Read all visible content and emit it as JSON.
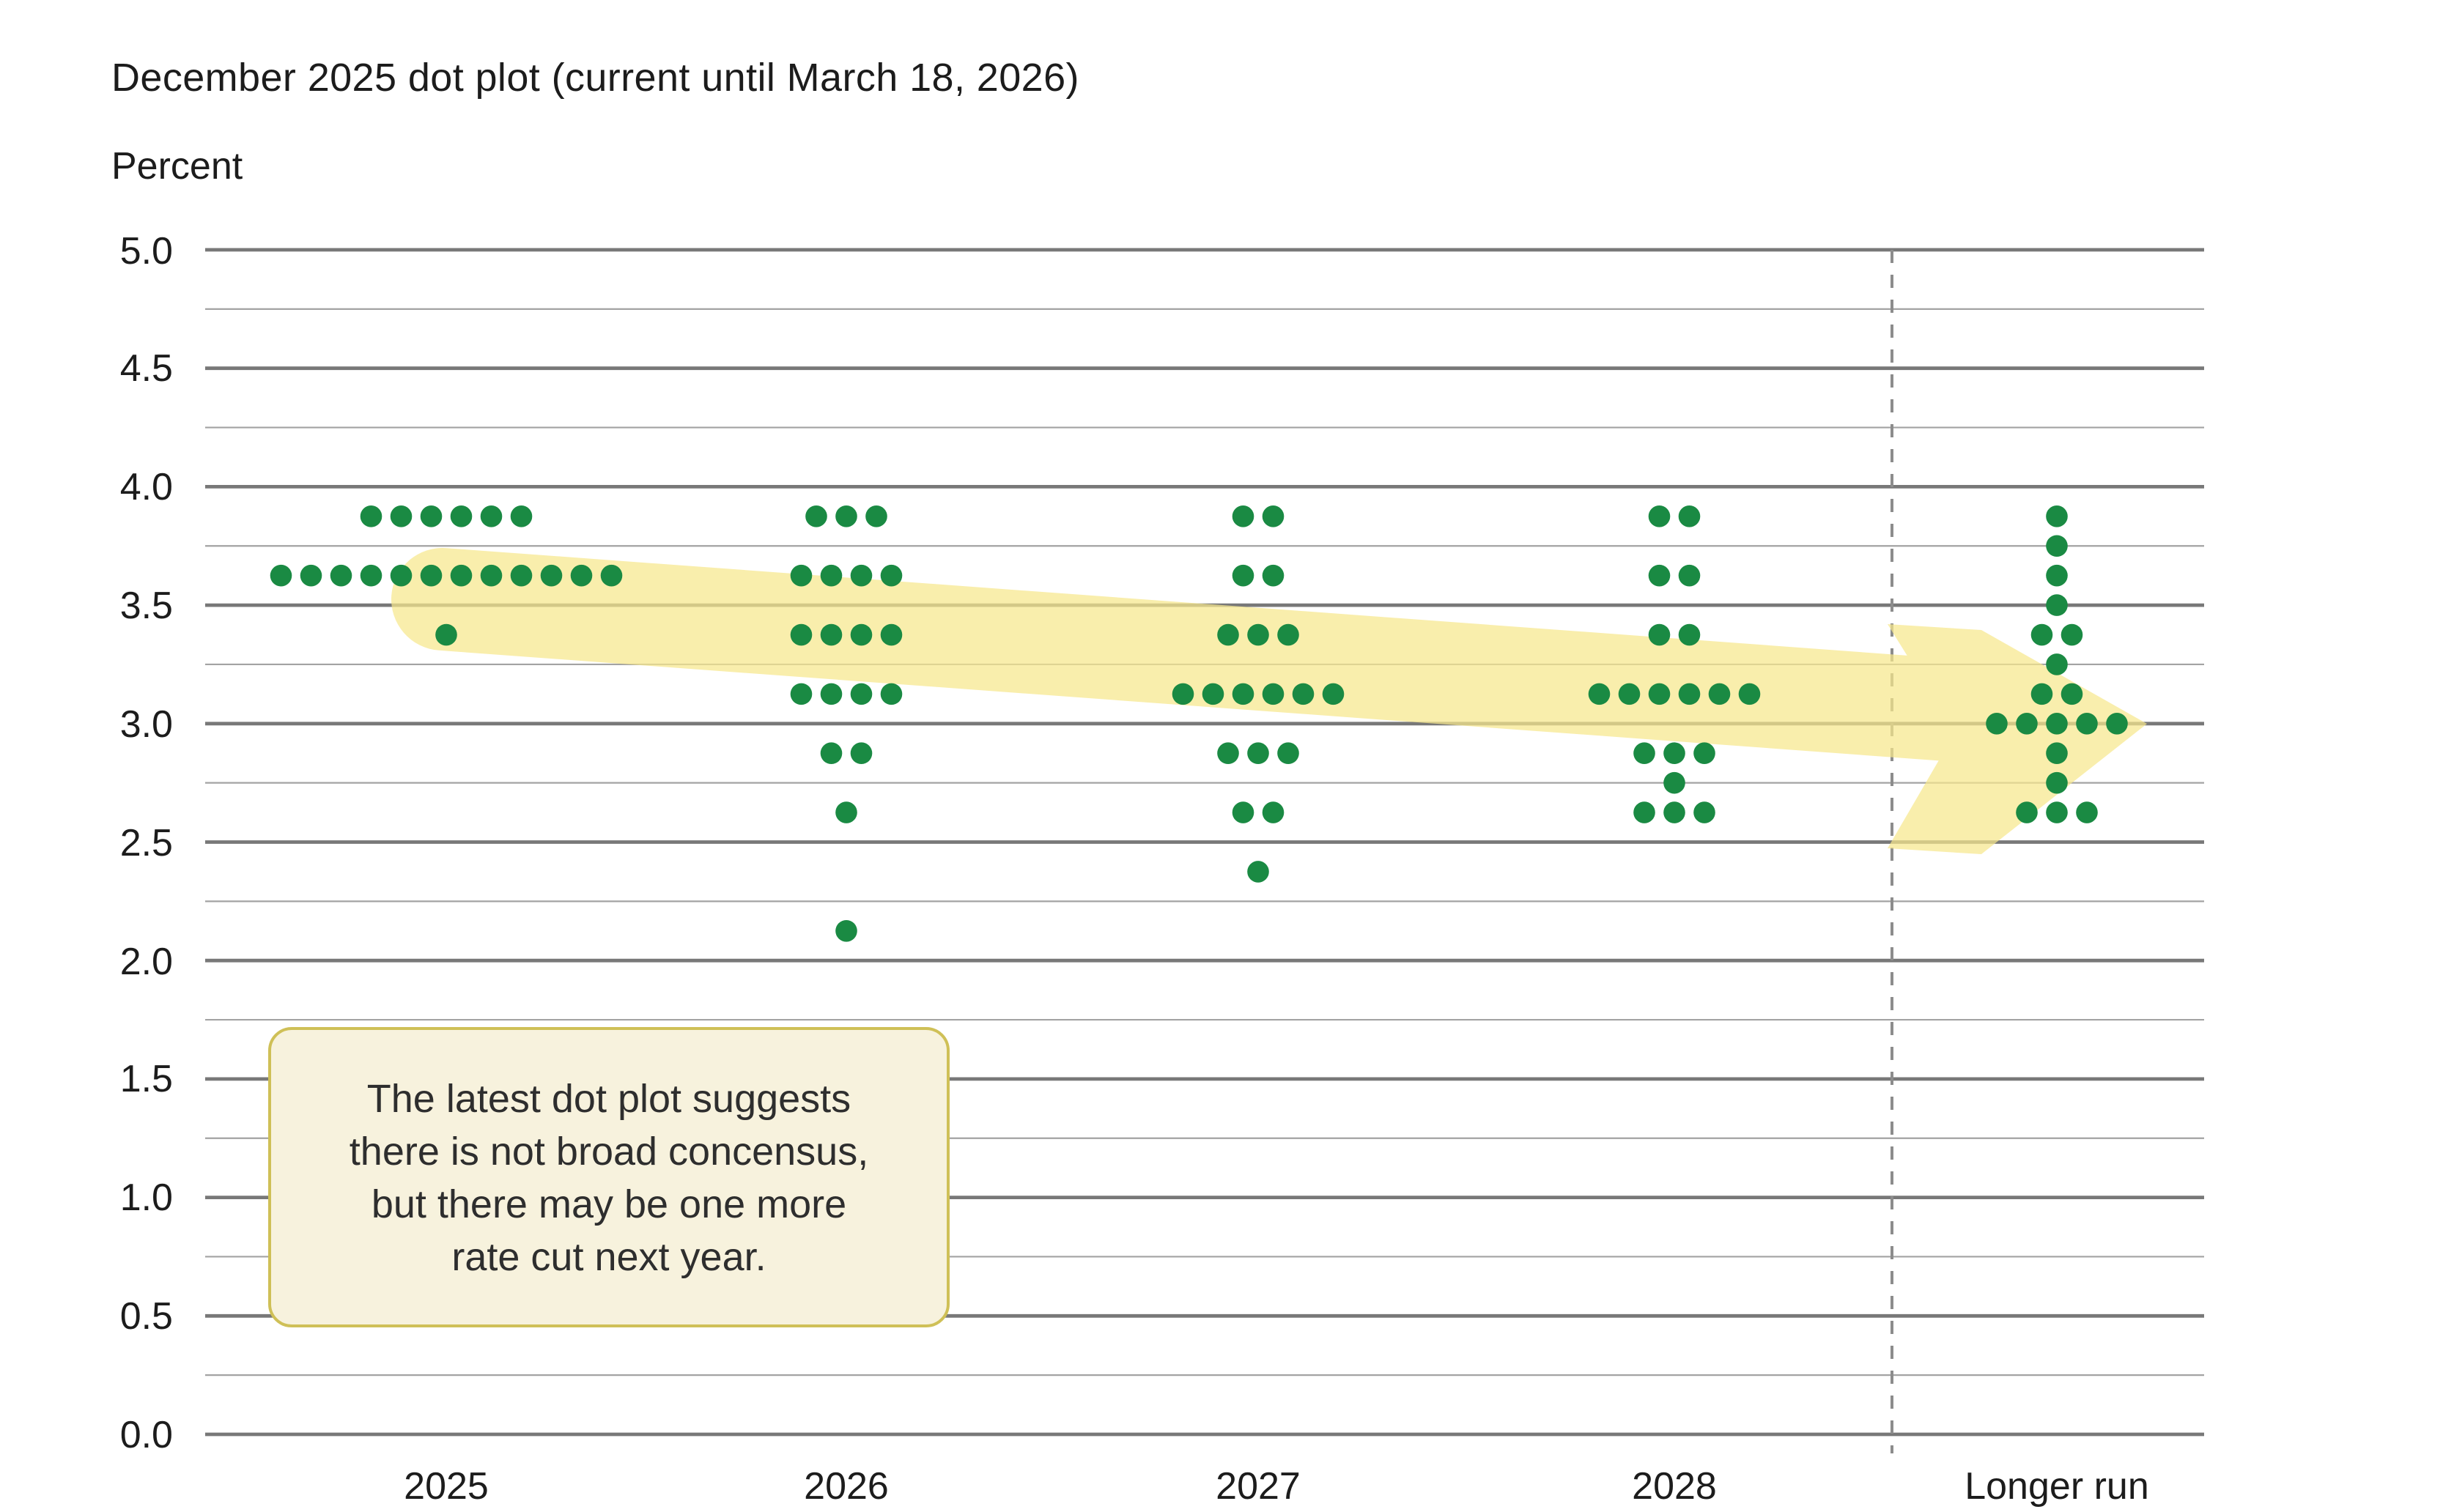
{
  "page": {
    "background_color": "#ffffff"
  },
  "header": {
    "title": "December 2025 dot plot (current until March 18, 2026)",
    "y_axis_title": "Percent"
  },
  "annotation_box": {
    "full_text": "The latest dot plot suggests there is not broad concensus, but there may be one more rate cut next year.",
    "lines": [
      "The latest dot plot suggests",
      "there is not broad concensus,",
      "but there may be one more",
      "rate cut next year."
    ],
    "fill_color": "#f7f2dd",
    "border_color": "#cfc057",
    "text_color": "#2e2e2e"
  },
  "chart_data": {
    "type": "scatter",
    "subtype": "fed-dot-plot",
    "title": "December 2025 dot plot (current until March 18, 2026)",
    "xlabel": "",
    "ylabel": "Percent",
    "ylim": [
      0.0,
      5.0
    ],
    "y_major_tick_step": 0.5,
    "y_minor_grid_step": 0.25,
    "y_tick_labels": [
      "5.0",
      "4.5",
      "4.0",
      "3.5",
      "3.0",
      "2.5",
      "2.0",
      "1.5",
      "1.0",
      "0.5",
      "0.0"
    ],
    "grid": "horizontal-only",
    "legend": "none",
    "categories": [
      "2025",
      "2026",
      "2027",
      "2028",
      "Longer run"
    ],
    "separator_before_category": "Longer run",
    "dots_per_category": 19,
    "series": [
      {
        "category": "2025",
        "dots": [
          {
            "rate": 3.875,
            "count": 6
          },
          {
            "rate": 3.625,
            "count": 12
          },
          {
            "rate": 3.375,
            "count": 1
          }
        ]
      },
      {
        "category": "2026",
        "dots": [
          {
            "rate": 3.875,
            "count": 3
          },
          {
            "rate": 3.625,
            "count": 4
          },
          {
            "rate": 3.375,
            "count": 4
          },
          {
            "rate": 3.125,
            "count": 4
          },
          {
            "rate": 2.875,
            "count": 2
          },
          {
            "rate": 2.625,
            "count": 1
          },
          {
            "rate": 2.125,
            "count": 1
          }
        ]
      },
      {
        "category": "2027",
        "dots": [
          {
            "rate": 3.875,
            "count": 2
          },
          {
            "rate": 3.625,
            "count": 2
          },
          {
            "rate": 3.375,
            "count": 3
          },
          {
            "rate": 3.125,
            "count": 6
          },
          {
            "rate": 2.875,
            "count": 3
          },
          {
            "rate": 2.625,
            "count": 2
          },
          {
            "rate": 2.375,
            "count": 1
          }
        ]
      },
      {
        "category": "2028",
        "dots": [
          {
            "rate": 3.875,
            "count": 2
          },
          {
            "rate": 3.625,
            "count": 2
          },
          {
            "rate": 3.375,
            "count": 2
          },
          {
            "rate": 3.125,
            "count": 6
          },
          {
            "rate": 2.875,
            "count": 3
          },
          {
            "rate": 2.75,
            "count": 1
          },
          {
            "rate": 2.625,
            "count": 3
          }
        ]
      },
      {
        "category": "Longer run",
        "dots": [
          {
            "rate": 3.875,
            "count": 1
          },
          {
            "rate": 3.75,
            "count": 1
          },
          {
            "rate": 3.625,
            "count": 1
          },
          {
            "rate": 3.5,
            "count": 1
          },
          {
            "rate": 3.375,
            "count": 2
          },
          {
            "rate": 3.25,
            "count": 1
          },
          {
            "rate": 3.125,
            "count": 2
          },
          {
            "rate": 3.0,
            "count": 5
          },
          {
            "rate": 2.875,
            "count": 1
          },
          {
            "rate": 2.75,
            "count": 1
          },
          {
            "rate": 2.625,
            "count": 3
          }
        ]
      }
    ],
    "annotation_arrow": {
      "description": "pale yellow arrow sloping from about 3.55% at 2025 to 3.0% at Longer run",
      "from_category": "2025",
      "from_rate": 3.55,
      "to_category": "Longer run",
      "to_rate": 3.0
    },
    "colors": {
      "dot": "#1a8a43",
      "arrow": "#f7e88d",
      "grid_major": "#787878",
      "grid_minor": "#a3a3a3",
      "separator_dash": "#8c8c8c"
    }
  }
}
